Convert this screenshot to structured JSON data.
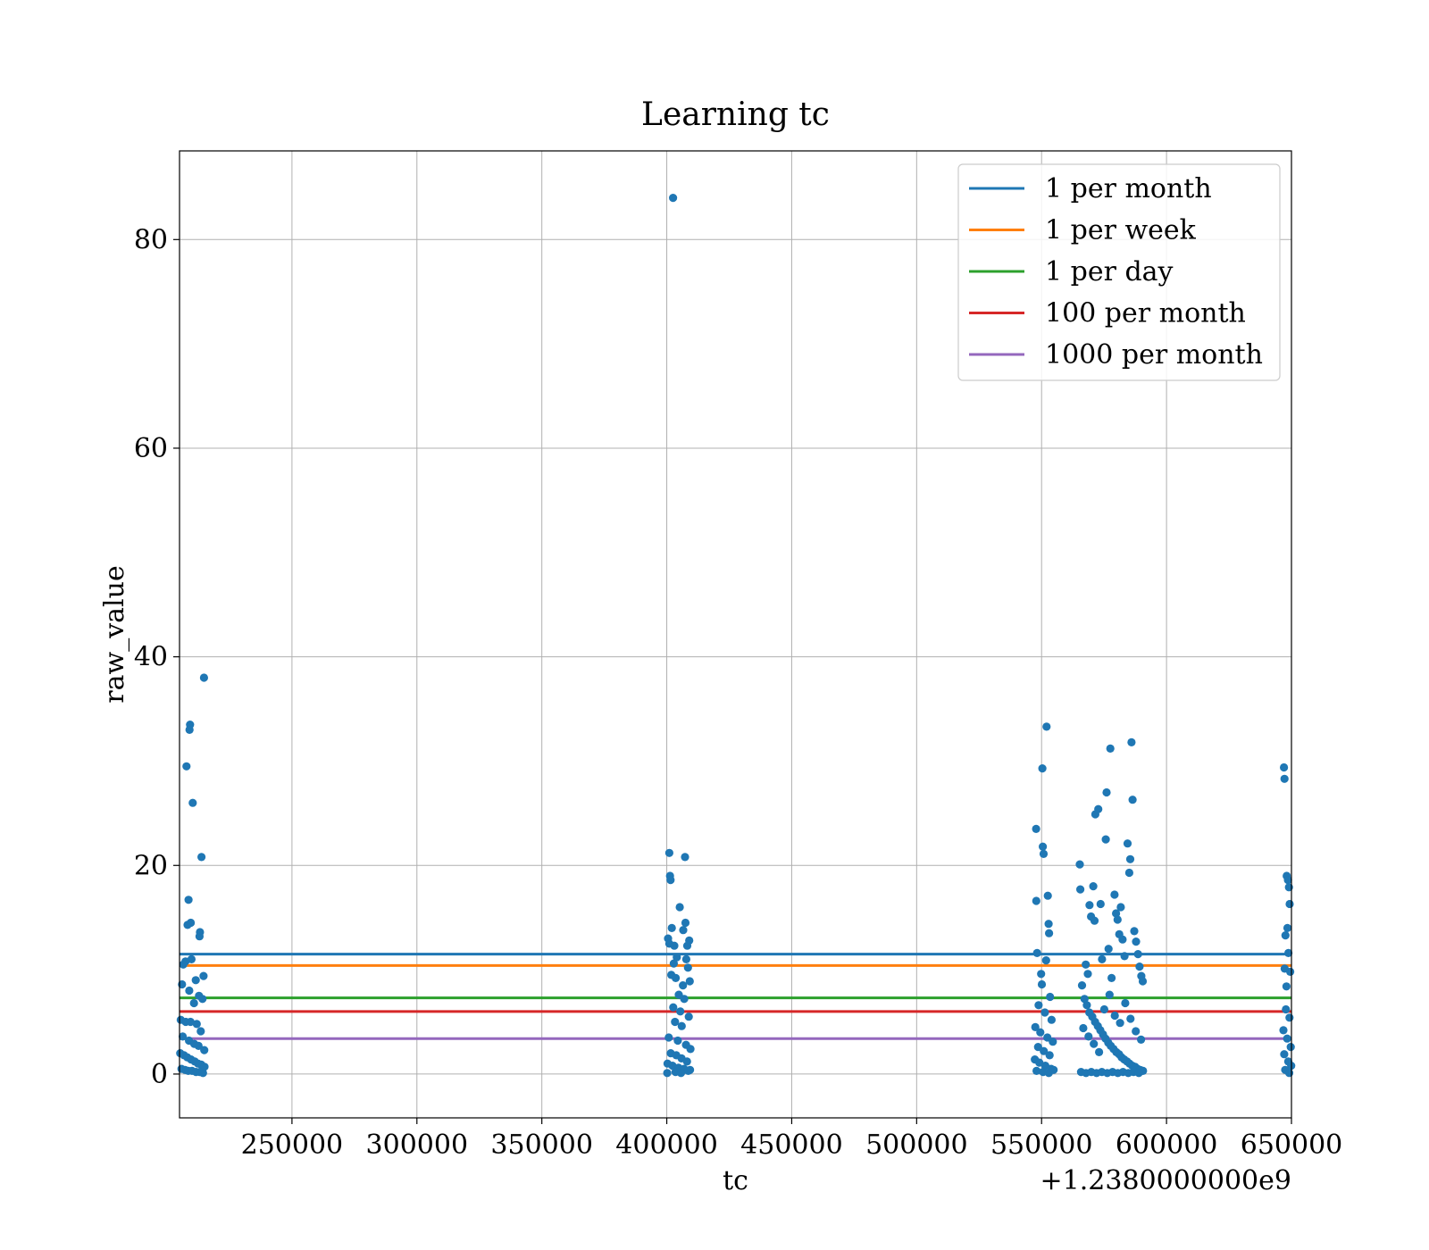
{
  "chart_data": {
    "type": "scatter",
    "title": "Learning tc",
    "xlabel": "tc",
    "ylabel": "raw_value",
    "x_offset_label": "+1.2380000000e9",
    "xlim": [
      205000,
      650000
    ],
    "ylim": [
      -4.2,
      88.5
    ],
    "x_ticks": [
      250000,
      300000,
      350000,
      400000,
      450000,
      500000,
      550000,
      600000,
      650000
    ],
    "x_tick_labels": [
      "250000",
      "300000",
      "350000",
      "400000",
      "450000",
      "500000",
      "550000",
      "600000",
      "650000"
    ],
    "y_ticks": [
      0,
      20,
      40,
      60,
      80
    ],
    "y_tick_labels": [
      "0",
      "20",
      "40",
      "60",
      "80"
    ],
    "grid": true,
    "legend_position": "top-right",
    "point_color": "#1f77b4",
    "points": [
      [
        402500,
        84
      ],
      [
        214800,
        38
      ],
      [
        209200,
        33.5
      ],
      [
        209000,
        33
      ],
      [
        207800,
        29.5
      ],
      [
        210300,
        26
      ],
      [
        213800,
        20.8
      ],
      [
        208600,
        16.7
      ],
      [
        208200,
        14.3
      ],
      [
        209500,
        14.5
      ],
      [
        213200,
        13.6
      ],
      [
        213000,
        13.2
      ],
      [
        207400,
        10.8
      ],
      [
        206500,
        10.5
      ],
      [
        209800,
        11
      ],
      [
        214600,
        9.4
      ],
      [
        211500,
        9
      ],
      [
        206000,
        8.6
      ],
      [
        212800,
        7.5
      ],
      [
        214200,
        7.2
      ],
      [
        208900,
        8
      ],
      [
        210800,
        6.8
      ],
      [
        205500,
        5.2
      ],
      [
        207500,
        5
      ],
      [
        209400,
        5
      ],
      [
        211900,
        4.8
      ],
      [
        213500,
        4.1
      ],
      [
        206300,
        3.6
      ],
      [
        208800,
        3.2
      ],
      [
        210900,
        2.9
      ],
      [
        212600,
        2.7
      ],
      [
        214900,
        2.3
      ],
      [
        205300,
        2
      ],
      [
        206800,
        1.8
      ],
      [
        208100,
        1.6
      ],
      [
        209600,
        1.4
      ],
      [
        211100,
        1.2
      ],
      [
        212400,
        1
      ],
      [
        213700,
        0.9
      ],
      [
        215000,
        0.7
      ],
      [
        205800,
        0.5
      ],
      [
        207200,
        0.4
      ],
      [
        208500,
        0.3
      ],
      [
        210000,
        0.3
      ],
      [
        211600,
        0.2
      ],
      [
        213100,
        0.2
      ],
      [
        214400,
        0.1
      ],
      [
        401000,
        21.2
      ],
      [
        401300,
        19
      ],
      [
        401500,
        18.6
      ],
      [
        407300,
        20.8
      ],
      [
        405200,
        16
      ],
      [
        407500,
        14.5
      ],
      [
        402000,
        14
      ],
      [
        406600,
        13.8
      ],
      [
        400500,
        13
      ],
      [
        401000,
        12.5
      ],
      [
        403000,
        12.3
      ],
      [
        409000,
        12.8
      ],
      [
        408200,
        12.3
      ],
      [
        404000,
        11.2
      ],
      [
        407800,
        11
      ],
      [
        402800,
        10.6
      ],
      [
        408500,
        10.2
      ],
      [
        401800,
        9.5
      ],
      [
        403600,
        9.2
      ],
      [
        406500,
        8.5
      ],
      [
        409200,
        8.9
      ],
      [
        404800,
        7.6
      ],
      [
        407000,
        7.2
      ],
      [
        402600,
        6.4
      ],
      [
        405400,
        6
      ],
      [
        408800,
        5.5
      ],
      [
        403300,
        5
      ],
      [
        406000,
        4.6
      ],
      [
        400800,
        3.5
      ],
      [
        404400,
        3.2
      ],
      [
        407700,
        2.8
      ],
      [
        409500,
        2.4
      ],
      [
        401600,
        2
      ],
      [
        403800,
        1.8
      ],
      [
        405900,
        1.5
      ],
      [
        408100,
        1.2
      ],
      [
        400300,
        1
      ],
      [
        402300,
        0.8
      ],
      [
        404700,
        0.6
      ],
      [
        406900,
        0.5
      ],
      [
        409300,
        0.4
      ],
      [
        400200,
        0.1
      ],
      [
        403500,
        0.2
      ],
      [
        405700,
        0.1
      ],
      [
        408600,
        0.3
      ],
      [
        547800,
        23.5
      ],
      [
        550500,
        21.8
      ],
      [
        550800,
        21.1
      ],
      [
        550300,
        29.3
      ],
      [
        552000,
        33.3
      ],
      [
        547900,
        16.6
      ],
      [
        552500,
        17.1
      ],
      [
        552800,
        14.4
      ],
      [
        553000,
        13.5
      ],
      [
        548200,
        11.6
      ],
      [
        551800,
        10.9
      ],
      [
        549800,
        9.6
      ],
      [
        550100,
        8.6
      ],
      [
        553400,
        7.4
      ],
      [
        548800,
        6.6
      ],
      [
        551300,
        5.9
      ],
      [
        554000,
        5.2
      ],
      [
        547500,
        4.5
      ],
      [
        549500,
        4
      ],
      [
        552300,
        3.5
      ],
      [
        554500,
        3.1
      ],
      [
        548600,
        2.6
      ],
      [
        550900,
        2.2
      ],
      [
        553200,
        1.8
      ],
      [
        547300,
        1.4
      ],
      [
        549100,
        1.1
      ],
      [
        551500,
        0.8
      ],
      [
        553800,
        0.5
      ],
      [
        548000,
        0.3
      ],
      [
        550600,
        0.2
      ],
      [
        552900,
        0.1
      ],
      [
        554800,
        0.4
      ],
      [
        565300,
        20.1
      ],
      [
        565500,
        17.7
      ],
      [
        567700,
        10.5
      ],
      [
        568500,
        9.6
      ],
      [
        569200,
        16.2
      ],
      [
        569800,
        15.1
      ],
      [
        570700,
        18
      ],
      [
        571200,
        14.7
      ],
      [
        571500,
        24.9
      ],
      [
        572700,
        25.4
      ],
      [
        573600,
        16.3
      ],
      [
        574200,
        11
      ],
      [
        575700,
        22.5
      ],
      [
        576000,
        27
      ],
      [
        576800,
        12
      ],
      [
        577500,
        31.2
      ],
      [
        578000,
        9.2
      ],
      [
        579200,
        17.2
      ],
      [
        579800,
        15.4
      ],
      [
        580400,
        14.8
      ],
      [
        581100,
        13.4
      ],
      [
        581700,
        16
      ],
      [
        582400,
        12.9
      ],
      [
        583200,
        11.3
      ],
      [
        584400,
        22.1
      ],
      [
        585100,
        19.3
      ],
      [
        585500,
        20.6
      ],
      [
        586000,
        31.8
      ],
      [
        586400,
        26.3
      ],
      [
        587100,
        13.7
      ],
      [
        587800,
        12.7
      ],
      [
        588600,
        11.5
      ],
      [
        589200,
        10.3
      ],
      [
        589900,
        9.4
      ],
      [
        590500,
        8.9
      ],
      [
        566200,
        8.5
      ],
      [
        567200,
        7.2
      ],
      [
        568100,
        6.6
      ],
      [
        569100,
        5.9
      ],
      [
        570300,
        5.5
      ],
      [
        571400,
        5
      ],
      [
        572500,
        4.6
      ],
      [
        573500,
        4.2
      ],
      [
        574600,
        3.8
      ],
      [
        575600,
        3.4
      ],
      [
        576700,
        3
      ],
      [
        577700,
        2.7
      ],
      [
        578800,
        2.4
      ],
      [
        579900,
        2.1
      ],
      [
        581000,
        1.9
      ],
      [
        582000,
        1.6
      ],
      [
        583100,
        1.4
      ],
      [
        584200,
        1.2
      ],
      [
        585200,
        1
      ],
      [
        586300,
        0.8
      ],
      [
        587400,
        0.7
      ],
      [
        588400,
        0.5
      ],
      [
        589500,
        0.4
      ],
      [
        590600,
        0.3
      ],
      [
        565800,
        0.2
      ],
      [
        567800,
        0.1
      ],
      [
        569900,
        0.2
      ],
      [
        572000,
        0.1
      ],
      [
        574100,
        0.2
      ],
      [
        576300,
        0.1
      ],
      [
        578400,
        0.2
      ],
      [
        580500,
        0.1
      ],
      [
        582600,
        0.2
      ],
      [
        584700,
        0.1
      ],
      [
        586800,
        0.2
      ],
      [
        588900,
        0.1
      ],
      [
        566700,
        4.4
      ],
      [
        568800,
        3.6
      ],
      [
        570900,
        2.9
      ],
      [
        573000,
        2.1
      ],
      [
        575100,
        6.2
      ],
      [
        577200,
        7.6
      ],
      [
        579300,
        5.6
      ],
      [
        581400,
        4.9
      ],
      [
        583500,
        6.8
      ],
      [
        585600,
        5.3
      ],
      [
        587700,
        4.1
      ],
      [
        589800,
        3.3
      ],
      [
        647000,
        29.4
      ],
      [
        647200,
        28.3
      ],
      [
        648100,
        19
      ],
      [
        648600,
        18.6
      ],
      [
        649000,
        17.9
      ],
      [
        648400,
        14
      ],
      [
        647600,
        13.3
      ],
      [
        649300,
        16.3
      ],
      [
        648800,
        11.6
      ],
      [
        647300,
        10.1
      ],
      [
        649500,
        9.8
      ],
      [
        648000,
        8.4
      ],
      [
        647800,
        6.2
      ],
      [
        649200,
        5.4
      ],
      [
        646800,
        4.2
      ],
      [
        648300,
        3.4
      ],
      [
        649700,
        2.6
      ],
      [
        647100,
        1.9
      ],
      [
        648700,
        1.2
      ],
      [
        649900,
        0.8
      ],
      [
        647500,
        0.4
      ],
      [
        649100,
        0.1
      ]
    ],
    "hlines": [
      {
        "name": "1 per month",
        "y": 11.5,
        "color": "#1f77b4"
      },
      {
        "name": "1 per week",
        "y": 10.4,
        "color": "#ff7f0e"
      },
      {
        "name": "1 per day",
        "y": 7.3,
        "color": "#2ca02c"
      },
      {
        "name": "100 per month",
        "y": 6.0,
        "color": "#d62728"
      },
      {
        "name": "1000 per month",
        "y": 3.4,
        "color": "#9467bd"
      }
    ]
  }
}
